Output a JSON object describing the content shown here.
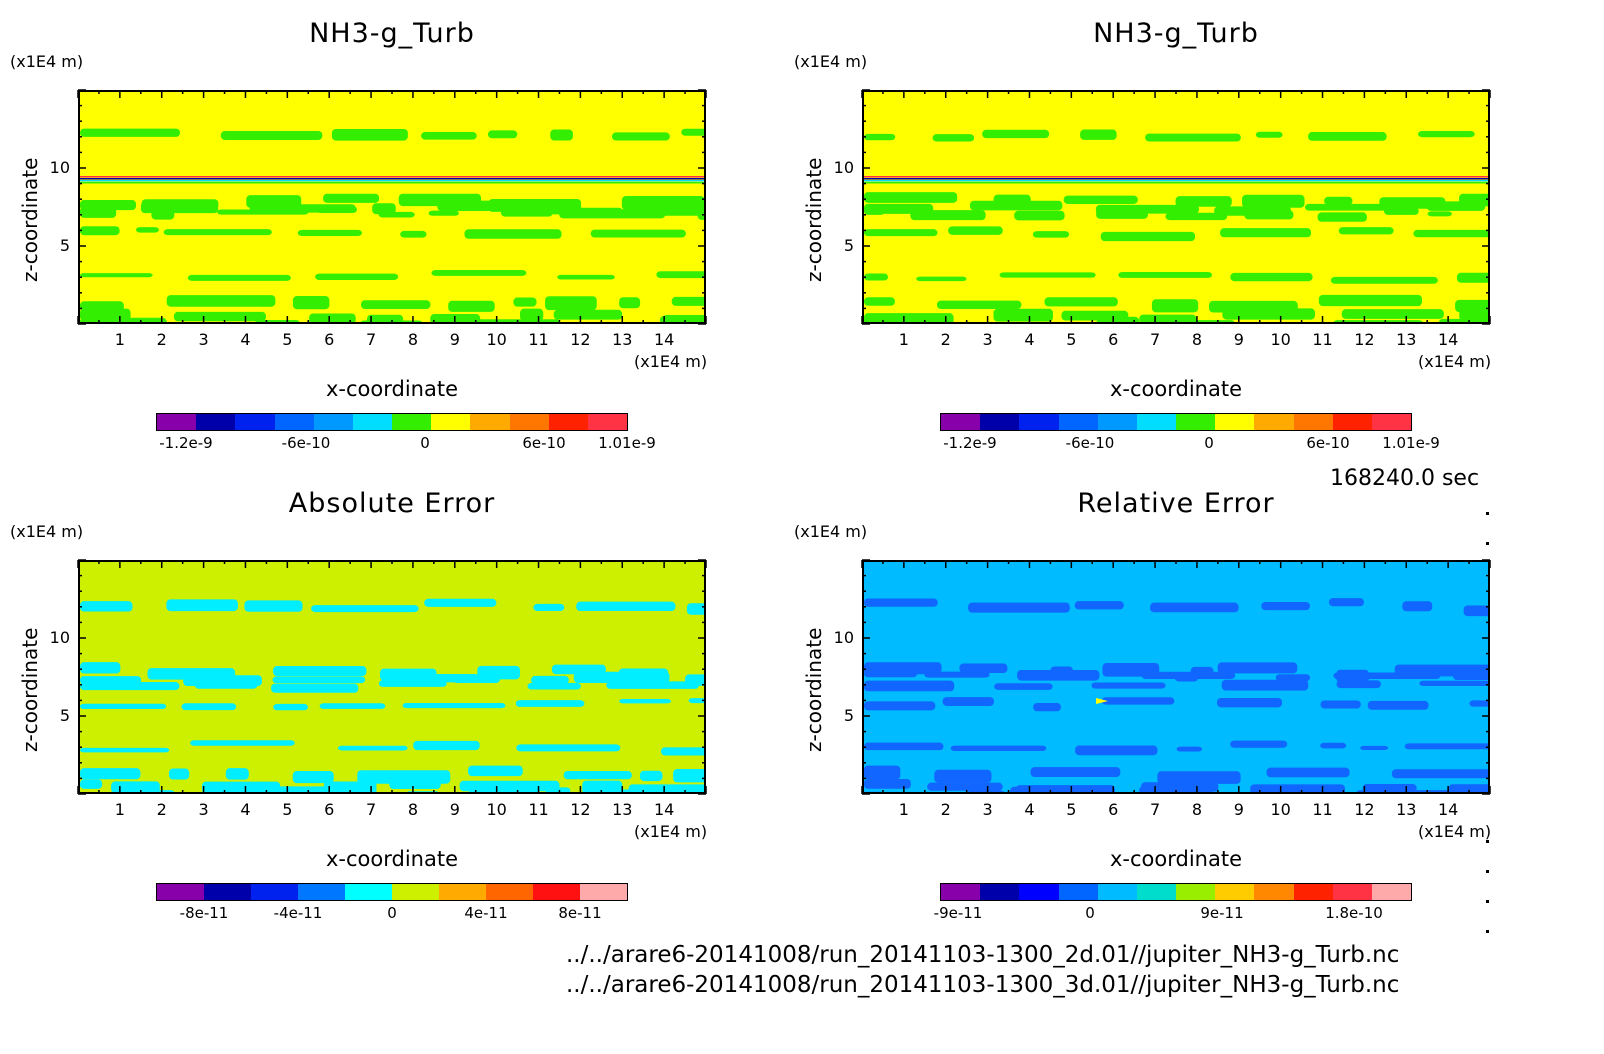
{
  "timestamp": "168240.0 sec",
  "footer": [
    "../../arare6-20141008/run_20141103-1300_2d.01//jupiter_NH3-g_Turb.nc",
    "../../arare6-20141008/run_20141103-1300_3d.01//jupiter_NH3-g_Turb.nc"
  ],
  "chart_data": [
    {
      "type": "heatmap",
      "title": "NH3-g_Turb",
      "xlabel": "x-coordinate",
      "ylabel": "z-coordinate",
      "x_unit": "(x1E4 m)",
      "y_unit": "(x1E4 m)",
      "xlim": [
        0,
        15
      ],
      "ylim": [
        0,
        15
      ],
      "x_ticks": [
        "1",
        "2",
        "3",
        "4",
        "5",
        "6",
        "7",
        "8",
        "9",
        "10",
        "11",
        "12",
        "13",
        "14"
      ],
      "y_ticks": [
        "5",
        "10"
      ],
      "background_color": "#ffff00",
      "band_color": "#33ee00",
      "colorbar": {
        "colors": [
          "#8800aa",
          "#0000aa",
          "#0022ee",
          "#0066ff",
          "#0099ff",
          "#00ddff",
          "#33ee00",
          "#ffff00",
          "#ffaa00",
          "#ff7700",
          "#ff2200",
          "#ff3344"
        ],
        "tick_labels": [
          "-1.2e-9",
          "-6e-10",
          "0",
          "6e-10",
          "1.01e-9"
        ]
      }
    },
    {
      "type": "heatmap",
      "title": "NH3-g_Turb",
      "xlabel": "x-coordinate",
      "ylabel": "z-coordinate",
      "x_unit": "(x1E4 m)",
      "y_unit": "(x1E4 m)",
      "xlim": [
        0,
        15
      ],
      "ylim": [
        0,
        15
      ],
      "x_ticks": [
        "1",
        "2",
        "3",
        "4",
        "5",
        "6",
        "7",
        "8",
        "9",
        "10",
        "11",
        "12",
        "13",
        "14"
      ],
      "y_ticks": [
        "5",
        "10"
      ],
      "background_color": "#ffff00",
      "band_color": "#33ee00",
      "colorbar": {
        "colors": [
          "#8800aa",
          "#0000aa",
          "#0022ee",
          "#0066ff",
          "#0099ff",
          "#00ddff",
          "#33ee00",
          "#ffff00",
          "#ffaa00",
          "#ff7700",
          "#ff2200",
          "#ff3344"
        ],
        "tick_labels": [
          "-1.2e-9",
          "-6e-10",
          "0",
          "6e-10",
          "1.01e-9"
        ]
      }
    },
    {
      "type": "heatmap",
      "title": "Absolute Error",
      "xlabel": "x-coordinate",
      "ylabel": "z-coordinate",
      "x_unit": "(x1E4 m)",
      "y_unit": "(x1E4 m)",
      "xlim": [
        0,
        15
      ],
      "ylim": [
        0,
        15
      ],
      "x_ticks": [
        "1",
        "2",
        "3",
        "4",
        "5",
        "6",
        "7",
        "8",
        "9",
        "10",
        "11",
        "12",
        "13",
        "14"
      ],
      "y_ticks": [
        "5",
        "10"
      ],
      "background_color": "#ccf000",
      "band_color": "#00eeff",
      "colorbar": {
        "colors": [
          "#8800aa",
          "#0000aa",
          "#0022ee",
          "#0077ff",
          "#00ffff",
          "#ccf000",
          "#ffaa00",
          "#ff6600",
          "#ff1111",
          "#ffaaaa"
        ],
        "tick_labels": [
          "-8e-11",
          "-4e-11",
          "0",
          "4e-11",
          "8e-11"
        ]
      }
    },
    {
      "type": "heatmap",
      "title": "Relative Error",
      "xlabel": "x-coordinate",
      "ylabel": "z-coordinate",
      "x_unit": "(x1E4 m)",
      "y_unit": "(x1E4 m)",
      "xlim": [
        0,
        15
      ],
      "ylim": [
        0,
        15
      ],
      "x_ticks": [
        "1",
        "2",
        "3",
        "4",
        "5",
        "6",
        "7",
        "8",
        "9",
        "10",
        "11",
        "12",
        "13",
        "14"
      ],
      "y_ticks": [
        "5",
        "10"
      ],
      "background_color": "#00bbff",
      "band_color": "#1166ff",
      "colorbar": {
        "colors": [
          "#8800aa",
          "#0000aa",
          "#0000ff",
          "#0066ff",
          "#00bbff",
          "#00ddcc",
          "#99ee00",
          "#ffcc00",
          "#ff8800",
          "#ff2200",
          "#ff3344",
          "#ffaaaa"
        ],
        "tick_labels": [
          "-9e-11",
          "0",
          "9e-11",
          "1.8e-10"
        ]
      }
    }
  ]
}
